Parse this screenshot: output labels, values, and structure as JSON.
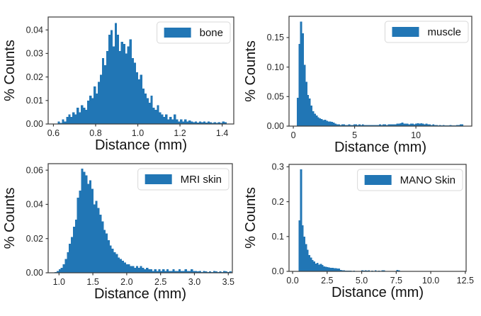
{
  "figure": {
    "background": "#ffffff",
    "bar_color": "#2176b5",
    "spine_color": "#3a3a3a",
    "tick_text_color": "#262626",
    "label_text_color": "#111111",
    "legend_border_color": "#d8d8d8",
    "legend_background": "#ffffff"
  },
  "chart_data": [
    {
      "type": "bar",
      "subtype": "histogram",
      "legend": "bone",
      "legend_position": "upper right",
      "xlabel": "Distance (mm)",
      "ylabel": "% Counts",
      "xlim": [
        0.575,
        1.455
      ],
      "ylim": [
        0,
        0.0455
      ],
      "grid": false,
      "xticks": [
        0.6,
        0.8,
        1.0,
        1.2,
        1.4
      ],
      "xtick_labels": [
        "0.6",
        "0.8",
        "1.0",
        "1.2",
        "1.4"
      ],
      "yticks": [
        0,
        0.01,
        0.02,
        0.03,
        0.04
      ],
      "ytick_labels": [
        "0.00",
        "0.01",
        "0.02",
        "0.03",
        "0.04"
      ],
      "bin_start": 0.62,
      "bin_width": 0.01,
      "bin_heights": [
        0.001,
        0.0005,
        0.002,
        0.001,
        0.003,
        0.004,
        0.003,
        0.005,
        0.004,
        0.007,
        0.005,
        0.008,
        0.007,
        0.006,
        0.01,
        0.012,
        0.011,
        0.016,
        0.013,
        0.018,
        0.021,
        0.028,
        0.025,
        0.031,
        0.038,
        0.04,
        0.033,
        0.043,
        0.038,
        0.031,
        0.035,
        0.034,
        0.03,
        0.033,
        0.036,
        0.028,
        0.026,
        0.022,
        0.019,
        0.021,
        0.015,
        0.013,
        0.011,
        0.009,
        0.012,
        0.007,
        0.006,
        0.008,
        0.005,
        0.004,
        0.003,
        0.004,
        0.002,
        0.003,
        0.002,
        0.004,
        0.002,
        0.001,
        0.002,
        0.001,
        0.002,
        0.001,
        0.0015,
        0.001,
        0.0008,
        0.001,
        0.0006,
        0.001,
        0.0008,
        0.001,
        0.0006,
        0.001,
        0.0008,
        0.0005,
        0.0008,
        0.0005,
        0.0008,
        0.0005,
        0.001,
        0.0008
      ]
    },
    {
      "type": "bar",
      "subtype": "histogram",
      "legend": "muscle",
      "legend_position": "upper right",
      "xlabel": "Distance (mm)",
      "ylabel": "% Counts",
      "xlim": [
        -0.35,
        14.56
      ],
      "ylim": [
        0,
        0.186
      ],
      "grid": false,
      "xticks": [
        0,
        5,
        10
      ],
      "xtick_labels": [
        "0",
        "5",
        "10"
      ],
      "yticks": [
        0,
        0.05,
        0.1,
        0.15
      ],
      "ytick_labels": [
        "0.00",
        "0.05",
        "0.10",
        "0.15"
      ],
      "bin_start": 0.28,
      "bin_width": 0.14,
      "bin_heights": [
        0.048,
        0.139,
        0.177,
        0.157,
        0.104,
        0.075,
        0.053,
        0.047,
        0.035,
        0.025,
        0.021,
        0.018,
        0.015,
        0.013,
        0.012,
        0.01,
        0.011,
        0.009,
        0.008,
        0.008,
        0.007,
        0.006,
        0.004,
        0.003,
        0.003,
        0.002,
        0.003,
        0.003,
        0.002,
        0.002,
        0.003,
        0.002,
        0.002,
        0.003,
        0.003,
        0.002,
        0.003,
        0.002,
        0.003,
        0.002,
        0.002,
        0.002,
        0.002,
        0.002,
        0.002,
        0.002,
        0.002,
        0.002,
        0.003,
        0.002,
        0.003,
        0.003,
        0.002,
        0.003,
        0.003,
        0.003,
        0.003,
        0.003,
        0.004,
        0.004,
        0.005,
        0.006,
        0.004,
        0.004,
        0.004,
        0.003,
        0.004,
        0.004,
        0.003,
        0.004,
        0.005,
        0.004,
        0.005,
        0.004,
        0.003,
        0.004,
        0.003,
        0.003,
        0.002,
        0.003,
        0.002,
        0.002,
        0.001,
        0.002,
        0.001,
        0.002,
        0.001,
        0.001,
        0.001,
        0.002,
        0.001,
        0.001,
        0.001,
        0.002,
        0.002,
        0.003,
        0.003
      ]
    },
    {
      "type": "bar",
      "subtype": "histogram",
      "legend": "MRI skin",
      "legend_position": "upper right",
      "xlabel": "Distance (mm)",
      "ylabel": "% Counts",
      "xlim": [
        0.84,
        3.56
      ],
      "ylim": [
        0,
        0.0638
      ],
      "grid": false,
      "xticks": [
        1.0,
        1.5,
        2.0,
        2.5,
        3.0,
        3.5
      ],
      "xtick_labels": [
        "1.0",
        "1.5",
        "2.0",
        "2.5",
        "3.0",
        "3.5"
      ],
      "yticks": [
        0,
        0.02,
        0.04,
        0.06
      ],
      "ytick_labels": [
        "0.00",
        "0.02",
        "0.04",
        "0.06"
      ],
      "bin_start": 0.935,
      "bin_width": 0.03,
      "bin_heights": [
        0.0005,
        0.001,
        0.002,
        0.003,
        0.005,
        0.008,
        0.012,
        0.017,
        0.021,
        0.027,
        0.031,
        0.044,
        0.048,
        0.061,
        0.059,
        0.057,
        0.052,
        0.054,
        0.049,
        0.04,
        0.042,
        0.038,
        0.034,
        0.03,
        0.025,
        0.023,
        0.019,
        0.016,
        0.014,
        0.012,
        0.011,
        0.009,
        0.008,
        0.007,
        0.006,
        0.005,
        0.005,
        0.004,
        0.004,
        0.003,
        0.004,
        0.003,
        0.004,
        0.003,
        0.002,
        0.003,
        0.002,
        0.002,
        0.001,
        0.002,
        0.001,
        0.002,
        0.001,
        0.002,
        0.001,
        0.002,
        0.001,
        0.001,
        0.002,
        0.001,
        0.001,
        0.002,
        0.001,
        0.001,
        0.002,
        0.001,
        0.001,
        0.002,
        0.001,
        0.001,
        0.0008,
        0.001,
        0.0005,
        0.001,
        0.0008,
        0.0005,
        0.0008,
        0.0005,
        0.001,
        0.0008,
        0.0005,
        0.0008,
        0.0005,
        0.001,
        0.0008,
        0.0005,
        0.0008
      ]
    },
    {
      "type": "bar",
      "subtype": "histogram",
      "legend": "MANO Skin",
      "legend_position": "upper right",
      "xlabel": "Distance (mm)",
      "ylabel": "% Counts",
      "xlim": [
        -0.26,
        12.56
      ],
      "ylim": [
        0,
        0.307
      ],
      "grid": false,
      "xticks": [
        0.0,
        2.5,
        5.0,
        7.5,
        10.0,
        12.5
      ],
      "xtick_labels": [
        "0.0",
        "2.5",
        "5.0",
        "7.5",
        "10.0",
        "12.5"
      ],
      "yticks": [
        0,
        0.1,
        0.2,
        0.3
      ],
      "ytick_labels": [
        "0.0",
        "0.1",
        "0.2",
        "0.3"
      ],
      "bin_start": 0.42,
      "bin_width": 0.12,
      "bin_heights": [
        0.146,
        0.293,
        0.132,
        0.1,
        0.078,
        0.062,
        0.047,
        0.04,
        0.033,
        0.028,
        0.022,
        0.024,
        0.019,
        0.021,
        0.018,
        0.014,
        0.013,
        0.012,
        0.011,
        0.01,
        0.01,
        0.009,
        0.009,
        0.008,
        0.008,
        0.004,
        0.003,
        0.003,
        0.002,
        0.002,
        0.002,
        0.002,
        0.001,
        0.002,
        0.001,
        0.001,
        0.001,
        0,
        0.003,
        0.002,
        0.003,
        0.002,
        0.003,
        0,
        0.002,
        0,
        0.003,
        0,
        0.002,
        0,
        0.003,
        0.003,
        0,
        0,
        0,
        0,
        0,
        0,
        0,
        0.004,
        0.003
      ]
    }
  ]
}
